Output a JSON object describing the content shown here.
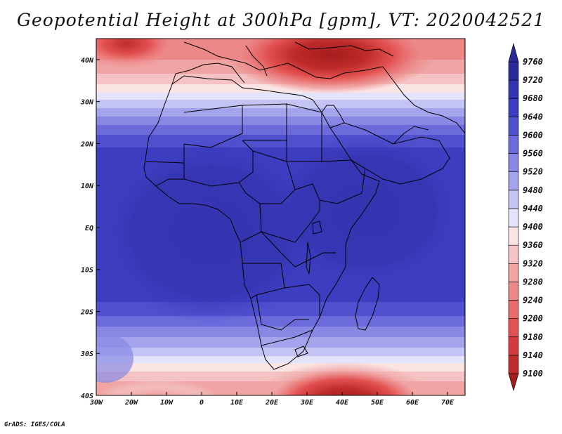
{
  "title": "Geopotential Height at 300hPa [gpm], VT: 2020042521",
  "credit": "GrADS: IGES/COLA",
  "chart_data": {
    "type": "heatmap",
    "variable": "Geopotential Height",
    "level": "300hPa",
    "units": "gpm",
    "valid_time": "2020042521",
    "lon_range": [
      -30,
      75
    ],
    "lat_range": [
      -40,
      45
    ],
    "x_ticks": [
      "30W",
      "20W",
      "10W",
      "0",
      "10E",
      "20E",
      "30E",
      "40E",
      "50E",
      "60E",
      "70E"
    ],
    "y_ticks": [
      "40N",
      "30N",
      "20N",
      "10N",
      "EQ",
      "10S",
      "20S",
      "30S",
      "40S"
    ],
    "colorbar_levels": [
      9100,
      9140,
      9180,
      9200,
      9240,
      9280,
      9320,
      9360,
      9400,
      9440,
      9480,
      9520,
      9560,
      9600,
      9640,
      9680,
      9720,
      9760
    ],
    "colorbar_colors": [
      "#a51c1c",
      "#bf2b2b",
      "#d63b3b",
      "#e35252",
      "#e86c6c",
      "#ec8888",
      "#f0a4a4",
      "#f5c3c3",
      "#fbe4e4",
      "#e3e3fb",
      "#c4c4f4",
      "#a4a4ec",
      "#8888e4",
      "#6b6bdc",
      "#5050cf",
      "#3d3dc1",
      "#3434b0",
      "#2a2a9a"
    ],
    "field_summary": {
      "low_centers": [
        {
          "name": "eastern Mediterranean / Turkey trough",
          "lon": 35,
          "lat": 41,
          "value": 9120
        },
        {
          "name": "west of Iberia trough",
          "lon": -22,
          "lat": 43,
          "value": 9200
        },
        {
          "name": "south of South Africa trough",
          "lon": 40,
          "lat": -39,
          "value": 9100
        }
      ],
      "high_region": {
        "name": "tropical ridge",
        "lon_range": [
          -25,
          75
        ],
        "lat_range": [
          -22,
          18
        ],
        "value": 9720
      }
    }
  }
}
